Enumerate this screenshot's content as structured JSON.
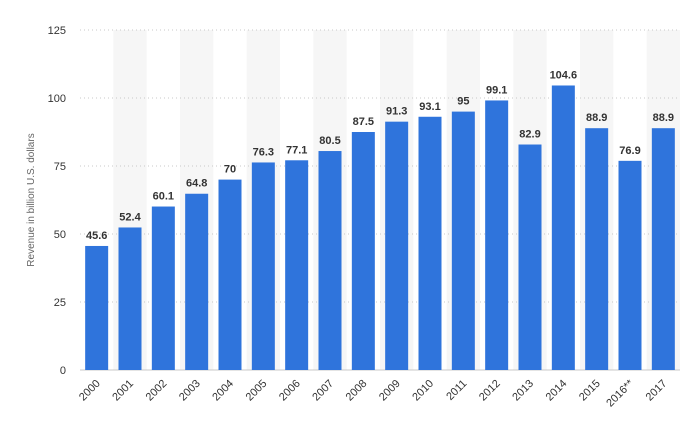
{
  "chart_data": {
    "type": "bar",
    "ylabel": "Revenue in billion U.S. dollars",
    "xlabel": "",
    "ylim": [
      0,
      125
    ],
    "yticks": [
      0,
      25,
      50,
      75,
      100,
      125
    ],
    "grid": "horizontal dotted",
    "categories": [
      "2000",
      "2001",
      "2002",
      "2003",
      "2004",
      "2005",
      "2006",
      "2007",
      "2008",
      "2009",
      "2010",
      "2011",
      "2012",
      "2013",
      "2014",
      "2015",
      "2016**",
      "2017"
    ],
    "series": [
      {
        "values": [
          45.6,
          52.4,
          60.1,
          64.8,
          70,
          76.3,
          77.1,
          80.5,
          87.5,
          91.3,
          93.1,
          95,
          99.1,
          82.9,
          104.6,
          88.9,
          76.9,
          88.9
        ],
        "labels": [
          "45.6",
          "52.4",
          "60.1",
          "64.8",
          "70",
          "76.3",
          "77.1",
          "80.5",
          "87.5",
          "91.3",
          "93.1",
          "95",
          "99.1",
          "82.9",
          "104.6",
          "88.9",
          "76.9",
          "88.9"
        ]
      }
    ],
    "colors": {
      "bar": "#2f74dc",
      "band": "#f6f6f6",
      "grid": "#c8c8c8",
      "text": "#333333"
    }
  }
}
